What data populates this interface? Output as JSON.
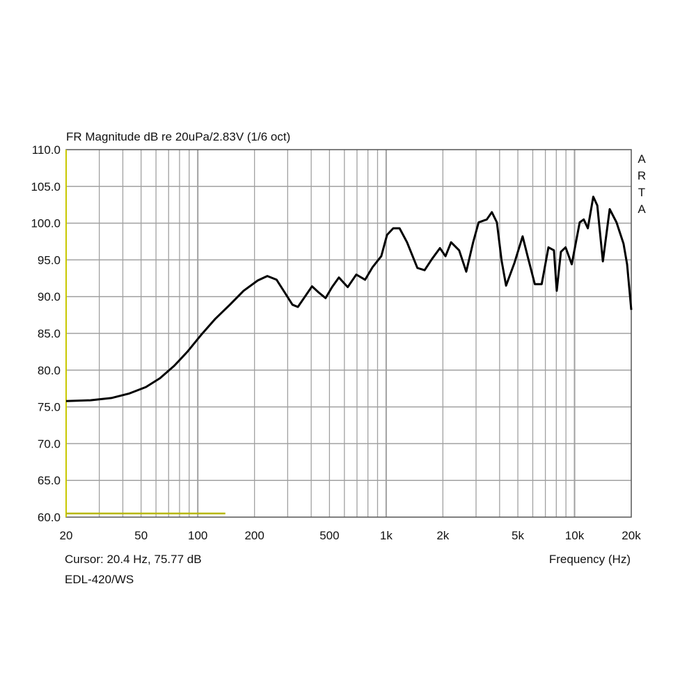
{
  "chart_data": {
    "type": "line",
    "title": "FR Magnitude dB re 20uPa/2.83V (1/6 oct)",
    "xlabel": "Frequency (Hz)",
    "ylabel": "",
    "xscale": "log",
    "xlim": [
      20,
      20000
    ],
    "ylim": [
      60,
      110
    ],
    "grid": true,
    "watermark": "ARTA",
    "cursor_text": "Cursor: 20.4 Hz, 75.77 dB",
    "series_name": "EDL-420/WS",
    "xticks": [
      {
        "v": 20,
        "label": "20"
      },
      {
        "v": 50,
        "label": "50"
      },
      {
        "v": 100,
        "label": "100"
      },
      {
        "v": 200,
        "label": "200"
      },
      {
        "v": 500,
        "label": "500"
      },
      {
        "v": 1000,
        "label": "1k"
      },
      {
        "v": 2000,
        "label": "2k"
      },
      {
        "v": 5000,
        "label": "5k"
      },
      {
        "v": 10000,
        "label": "10k"
      },
      {
        "v": 20000,
        "label": "20k"
      }
    ],
    "yticks": [
      "60.0",
      "65.0",
      "70.0",
      "75.0",
      "80.0",
      "85.0",
      "90.0",
      "95.0",
      "100.0",
      "105.0",
      "110.0"
    ],
    "colors": {
      "curve": "#000000",
      "grid": "#a0a0a0",
      "marker": "#b8b800"
    },
    "marker_line": {
      "x_from": 20,
      "x_to": 140,
      "y": 60.5
    },
    "series": [
      {
        "name": "EDL-420/WS",
        "x": [
          20,
          26.9,
          34.7,
          43,
          53,
          63,
          75,
          88,
          105,
          124,
          148,
          175,
          208,
          234,
          262,
          292,
          318,
          340,
          366,
          404,
          437,
          477,
          516,
          561,
          625,
          694,
          773,
          846,
          942,
          1011,
          1090,
          1178,
          1290,
          1465,
          1600,
          1748,
          1930,
          2066,
          2210,
          2440,
          2660,
          2895,
          3095,
          3420,
          3640,
          3870,
          4100,
          4330,
          4800,
          5300,
          5660,
          6150,
          6690,
          7270,
          7770,
          8040,
          8460,
          8960,
          9660,
          10650,
          11190,
          11760,
          12570,
          13210,
          14130,
          15370,
          16700,
          18200,
          19000,
          20000
        ],
        "y": [
          75.8,
          75.9,
          76.2,
          76.8,
          77.7,
          78.9,
          80.6,
          82.5,
          84.9,
          87.0,
          88.9,
          90.8,
          92.2,
          92.8,
          92.3,
          90.4,
          88.9,
          88.6,
          89.8,
          91.4,
          90.6,
          89.8,
          91.3,
          92.6,
          91.3,
          93.0,
          92.3,
          94.0,
          95.5,
          98.4,
          99.3,
          99.3,
          97.4,
          93.9,
          93.6,
          95.1,
          96.6,
          95.5,
          97.4,
          96.3,
          93.4,
          97.4,
          100.1,
          100.5,
          101.5,
          100.1,
          94.9,
          91.5,
          94.6,
          98.2,
          95.3,
          91.7,
          91.7,
          96.7,
          96.3,
          90.8,
          96.1,
          96.7,
          94.4,
          100.1,
          100.5,
          99.3,
          103.6,
          102.4,
          94.8,
          101.9,
          100.1,
          97.2,
          94.4,
          88.2
        ]
      }
    ]
  }
}
